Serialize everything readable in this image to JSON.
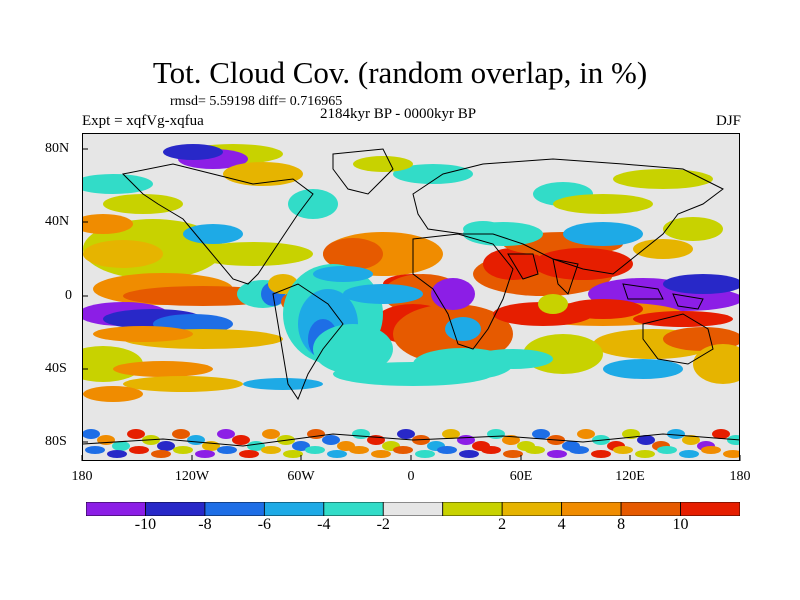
{
  "title": "Tot. Cloud Cov. (random overlap, in %)",
  "stats": "rmsd= 5.59198 diff= 0.716965",
  "period": "2184kyr BP - 0000kyr BP",
  "experiment": "Expt = xqfVg-xqfua",
  "season": "DJF",
  "lat_labels": [
    "80N",
    "40N",
    "0",
    "40S",
    "80S"
  ],
  "lon_labels": [
    "180",
    "120W",
    "60W",
    "0",
    "60E",
    "120E",
    "180"
  ],
  "colorbar": {
    "colors": [
      "#8c1ee6",
      "#2828c8",
      "#1e6ee6",
      "#1eaae6",
      "#32dcc8",
      "#e6e6e6",
      "#c8d200",
      "#e6b400",
      "#f08c00",
      "#e65a00",
      "#e61e00"
    ],
    "labels": [
      "-10",
      "-8",
      "-6",
      "-4",
      "-2",
      "2",
      "4",
      "8",
      "10"
    ]
  },
  "map": {
    "background_color": "#e6e6e6",
    "coastline_color": "#000000"
  }
}
